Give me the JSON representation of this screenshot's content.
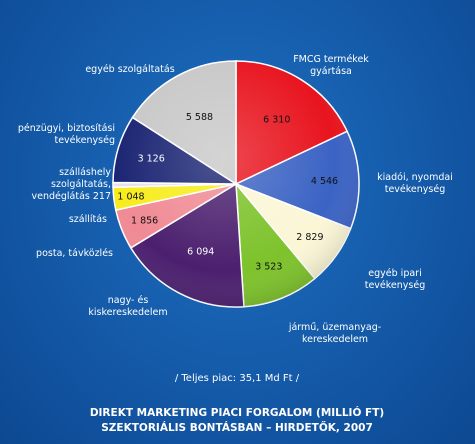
{
  "chart_data": {
    "type": "pie",
    "title_lines": [
      "DIREKT MARKETING PIACI FORGALOM (MILLIÓ FT)",
      "SZEKTORIÁLIS BONTÁSBAN – HIRDETŐK, 2007"
    ],
    "total_label": "/ Teljes piac: 35,1 Md Ft /",
    "slices": [
      {
        "label_lines": [
          "FMCG termékek",
          "gyártása"
        ],
        "value": 6310,
        "value_label": "6 310",
        "color": "#e8141e"
      },
      {
        "label_lines": [
          "kiadói, nyomdai",
          "tevékenység"
        ],
        "value": 4546,
        "value_label": "4 546",
        "color": "#3b63c4"
      },
      {
        "label_lines": [
          "egyéb ipari",
          "tevékenység"
        ],
        "value": 2829,
        "value_label": "2 829",
        "color": "#fbf6d6"
      },
      {
        "label_lines": [
          "jármű, üzemanyag-",
          "kereskedelem"
        ],
        "value": 3523,
        "value_label": "3 523",
        "color": "#7dc22b"
      },
      {
        "label_lines": [
          "nagy- és",
          "kiskereskedelem"
        ],
        "value": 6094,
        "value_label": "6 094",
        "color": "#4b1f6e"
      },
      {
        "label_lines": [
          "posta, távközlés"
        ],
        "value": 1856,
        "value_label": "1 856",
        "color": "#f08a94"
      },
      {
        "label_lines": [
          "szállítás"
        ],
        "value": 1048,
        "value_label": "1 048",
        "color": "#f7ec1c"
      },
      {
        "label_lines": [
          "szálláshely",
          "szolgáltatás,",
          "vendéglátás  217"
        ],
        "value": 217,
        "value_label": "",
        "color": "#e7ddef"
      },
      {
        "label_lines": [
          "pénzügyi, biztosítási",
          "tevékenység"
        ],
        "value": 3126,
        "value_label": "3 126",
        "color": "#1a2472"
      },
      {
        "label_lines": [
          "egyéb szolgáltatás"
        ],
        "value": 5588,
        "value_label": "5 588",
        "color": "#c8c8c8"
      }
    ]
  }
}
